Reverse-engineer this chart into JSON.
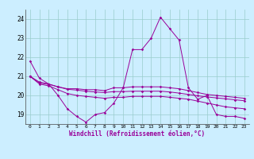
{
  "x": [
    0,
    1,
    2,
    3,
    4,
    5,
    6,
    7,
    8,
    9,
    10,
    11,
    12,
    13,
    14,
    15,
    16,
    17,
    18,
    19,
    20,
    21,
    22,
    23
  ],
  "line1": [
    21.8,
    20.9,
    20.6,
    20.0,
    19.3,
    18.9,
    18.6,
    19.0,
    19.1,
    19.6,
    20.4,
    22.4,
    22.4,
    23.0,
    24.1,
    23.5,
    22.9,
    20.4,
    19.8,
    20.0,
    19.0,
    18.9,
    18.9,
    18.8
  ],
  "line2": [
    21.0,
    20.7,
    20.6,
    20.45,
    20.35,
    20.35,
    20.3,
    20.3,
    20.25,
    20.4,
    20.4,
    20.45,
    20.45,
    20.45,
    20.45,
    20.4,
    20.35,
    20.25,
    20.15,
    20.05,
    20.0,
    19.95,
    19.9,
    19.85
  ],
  "line3": [
    21.0,
    20.65,
    20.58,
    20.45,
    20.32,
    20.28,
    20.22,
    20.18,
    20.15,
    20.2,
    20.2,
    20.22,
    20.22,
    20.22,
    20.22,
    20.18,
    20.12,
    20.05,
    19.98,
    19.92,
    19.87,
    19.82,
    19.77,
    19.72
  ],
  "line4": [
    21.0,
    20.6,
    20.5,
    20.3,
    20.1,
    20.0,
    19.95,
    19.9,
    19.85,
    19.9,
    19.9,
    19.95,
    19.95,
    19.95,
    19.95,
    19.9,
    19.85,
    19.8,
    19.7,
    19.6,
    19.5,
    19.4,
    19.35,
    19.3
  ],
  "line_color": "#990099",
  "bg_color": "#cceeff",
  "grid_color": "#99cccc",
  "ylabel_ticks": [
    19,
    20,
    21,
    22,
    23,
    24
  ],
  "xlabel": "Windchill (Refroidissement éolien,°C)",
  "ylim": [
    18.5,
    24.5
  ],
  "xlim": [
    -0.5,
    23.5
  ]
}
